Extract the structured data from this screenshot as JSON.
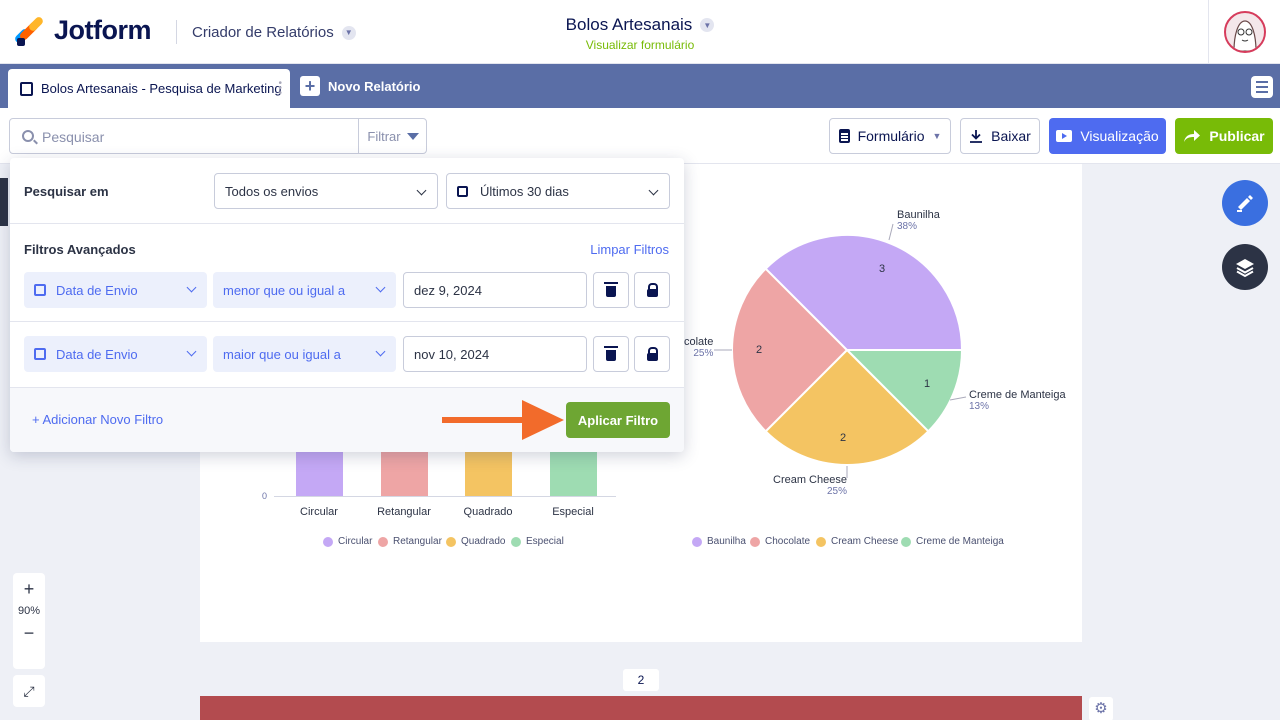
{
  "header": {
    "logo_text": "Jotform",
    "app_name": "Criador de Relatórios",
    "form_title": "Bolos Artesanais",
    "form_subtitle": "Visualizar formulário"
  },
  "tabs": {
    "active_label": "Bolos Artesanais - Pesquisa de Marketing",
    "new_report_label": "Novo Relatório"
  },
  "toolbar": {
    "search_placeholder": "Pesquisar",
    "filter_label": "Filtrar",
    "form_button": "Formulário",
    "download_button": "Baixar",
    "preview_button": "Visualização",
    "publish_button": "Publicar"
  },
  "filter_panel": {
    "search_in_label": "Pesquisar em",
    "scope_value": "Todos os envios",
    "date_range_value": "Últimos 30 dias",
    "advanced_label": "Filtros Avançados",
    "clear_label": "Limpar Filtros",
    "filters": [
      {
        "field": "Data de Envio",
        "operator": "menor que ou igual a",
        "value": "dez 9, 2024"
      },
      {
        "field": "Data de Envio",
        "operator": "maior que ou igual a",
        "value": "nov 10, 2024"
      }
    ],
    "add_filter_label": "+ Adicionar Novo Filtro",
    "apply_label": "Aplicar Filtro"
  },
  "zoom": {
    "level": "90%",
    "plus": "+",
    "minus": "−"
  },
  "page_number": "2",
  "chart_data": [
    {
      "type": "bar",
      "categories": [
        "Circular",
        "Retangular",
        "Quadrado",
        "Especial"
      ],
      "ytick_visible": "0",
      "legend": [
        "Circular",
        "Retangular",
        "Quadrado",
        "Especial"
      ],
      "colors": [
        "#c4a8f5",
        "#eea5a5",
        "#f4c462",
        "#9edcb2"
      ]
    },
    {
      "type": "pie",
      "slices": [
        {
          "name": "Baunilha",
          "value": 3,
          "percent": "38%",
          "color": "#c4a8f5"
        },
        {
          "name": "Creme de Manteiga",
          "value": 1,
          "percent": "13%",
          "color": "#9edcb2"
        },
        {
          "name": "Cream Cheese",
          "value": 2,
          "percent": "25%",
          "color": "#f4c462"
        },
        {
          "name": "Chocolate",
          "value": 2,
          "percent": "25%",
          "color": "#eea5a5"
        }
      ],
      "chocolate_label_visible": "colate",
      "legend": [
        "Baunilha",
        "Chocolate",
        "Cream Cheese",
        "Creme de Manteiga"
      ],
      "legend_colors": [
        "#c4a8f5",
        "#eea5a5",
        "#f4c462",
        "#9edcb2"
      ]
    }
  ]
}
